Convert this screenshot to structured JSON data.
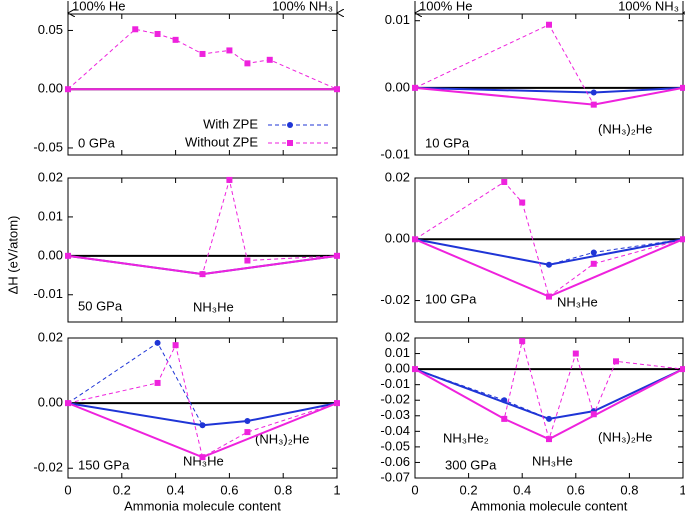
{
  "chart_data": [
    {
      "type": "line",
      "annotations": [
        "0 GPa"
      ],
      "top_labels": [
        "100% He",
        "100% NH₃"
      ],
      "legend": "lower right",
      "xlim": [
        0,
        1
      ],
      "xticks": [
        0,
        0.2,
        0.4,
        0.6,
        0.8,
        1
      ],
      "ylim": [
        -0.056,
        0.064
      ],
      "yticks": [
        {
          "value": 0.05,
          "label": "0.05"
        },
        {
          "value": 0,
          "label": "0.00"
        },
        {
          "value": -0.05,
          "label": "-0.05"
        }
      ],
      "series": [
        {
          "name": "With ZPE",
          "color": "#1f35d6",
          "x": [],
          "values": []
        },
        {
          "name": "Without ZPE",
          "color": "#ee22dd",
          "x": [
            0,
            0.25,
            0.333,
            0.4,
            0.5,
            0.6,
            0.667,
            0.75,
            1
          ],
          "values": [
            0,
            0.051,
            0.047,
            0.042,
            0.03,
            0.033,
            0.022,
            0.025,
            0
          ]
        }
      ]
    },
    {
      "type": "line",
      "annotations": [
        "10 GPa",
        "(NH₃)₂He"
      ],
      "top_labels": [
        "100% He",
        "100% NH₃"
      ],
      "xlim": [
        0,
        1
      ],
      "xticks": [
        0,
        0.2,
        0.4,
        0.6,
        0.8,
        1
      ],
      "ylim": [
        -0.01,
        0.011
      ],
      "yticks": [
        {
          "value": 0.01,
          "label": "0.01"
        },
        {
          "value": 0,
          "label": "0.00"
        },
        {
          "value": -0.01,
          "label": "-0.01"
        }
      ],
      "series": [
        {
          "color": "#1f35d6",
          "x": [
            0,
            0.667,
            1
          ],
          "values": [
            0,
            -0.0007,
            0
          ]
        },
        {
          "color": "#ee22dd",
          "x": [
            0,
            0.5,
            0.667,
            1
          ],
          "values": [
            0,
            0.0094,
            -0.0025,
            0
          ]
        }
      ]
    },
    {
      "type": "line",
      "annotations": [
        "50 GPa",
        "NH₃He"
      ],
      "y_label": "ΔH (eV/atom)",
      "xlim": [
        0,
        1
      ],
      "xticks": [
        0,
        0.2,
        0.4,
        0.6,
        0.8,
        1
      ],
      "ylim": [
        -0.017,
        0.02
      ],
      "yticks": [
        {
          "value": 0.02,
          "label": "0.02"
        },
        {
          "value": 0.01,
          "label": "0.01"
        },
        {
          "value": 0,
          "label": "0.00"
        },
        {
          "value": -0.01,
          "label": "-0.01"
        }
      ],
      "series": [
        {
          "color": "#1f35d6",
          "x": [
            0,
            0.5,
            1
          ],
          "values": [
            0,
            -0.0047,
            0
          ]
        },
        {
          "color": "#ee22dd",
          "x": [
            0,
            0.5,
            0.6,
            0.667,
            1
          ],
          "values": [
            0,
            -0.0047,
            0.0195,
            -0.0012,
            0
          ]
        }
      ]
    },
    {
      "type": "line",
      "annotations": [
        "100 GPa",
        "NH₃He"
      ],
      "xlim": [
        0,
        1
      ],
      "xticks": [
        0,
        0.2,
        0.4,
        0.6,
        0.8,
        1
      ],
      "ylim": [
        -0.027,
        0.02
      ],
      "yticks": [
        {
          "value": 0.02,
          "label": "0.02"
        },
        {
          "value": 0,
          "label": "0.00"
        },
        {
          "value": -0.02,
          "label": "-0.02"
        }
      ],
      "series": [
        {
          "color": "#1f35d6",
          "x": [
            0,
            0.5,
            0.667,
            1
          ],
          "values": [
            0,
            -0.0083,
            -0.0043,
            0
          ]
        },
        {
          "color": "#ee22dd",
          "x": [
            0,
            0.333,
            0.4,
            0.5,
            0.667,
            1
          ],
          "values": [
            0,
            0.0187,
            0.012,
            -0.0187,
            -0.008,
            0
          ]
        }
      ]
    },
    {
      "type": "line",
      "annotations": [
        "150 GPa",
        "NH₃He",
        "(NH₃)₂He"
      ],
      "x_label": "Ammonia molecule content",
      "xlim": [
        0,
        1
      ],
      "xticks": [
        0,
        0.2,
        0.4,
        0.6,
        0.8,
        1
      ],
      "ylim": [
        -0.023,
        0.02
      ],
      "yticks": [
        {
          "value": 0.02,
          "label": "0.02"
        },
        {
          "value": 0,
          "label": "0.00"
        },
        {
          "value": -0.02,
          "label": "-0.02"
        }
      ],
      "series": [
        {
          "color": "#1f35d6",
          "x": [
            0,
            0.333,
            0.5,
            0.667,
            1
          ],
          "values": [
            0,
            0.0185,
            -0.0068,
            -0.0055,
            0
          ]
        },
        {
          "color": "#ee22dd",
          "x": [
            0,
            0.333,
            0.4,
            0.5,
            0.667,
            1
          ],
          "values": [
            0,
            0.0062,
            0.0178,
            -0.0166,
            -0.0089,
            0
          ]
        }
      ]
    },
    {
      "type": "line",
      "annotations": [
        "300 GPa",
        "NH₃He₂",
        "NH₃He",
        "(NH₃)₂He"
      ],
      "x_label": "Ammonia molecule content",
      "xlim": [
        0,
        1
      ],
      "xticks": [
        0,
        0.2,
        0.4,
        0.6,
        0.8,
        1
      ],
      "ylim": [
        -0.07,
        0.02
      ],
      "yticks": [
        {
          "value": 0.02,
          "label": "0.02"
        },
        {
          "value": 0.01,
          "label": "0.01"
        },
        {
          "value": 0,
          "label": "0.00"
        },
        {
          "value": -0.01,
          "label": "-0.01"
        },
        {
          "value": -0.02,
          "label": "-0.02"
        },
        {
          "value": -0.03,
          "label": "-0.03"
        },
        {
          "value": -0.04,
          "label": "-0.04"
        },
        {
          "value": -0.05,
          "label": "-0.05"
        },
        {
          "value": -0.06,
          "label": "-0.06"
        },
        {
          "value": -0.07,
          "label": "-0.07"
        }
      ],
      "series": [
        {
          "color": "#1f35d6",
          "x": [
            0,
            0.333,
            0.5,
            0.667,
            1
          ],
          "values": [
            0,
            -0.02,
            -0.032,
            -0.027,
            0
          ]
        },
        {
          "color": "#ee22dd",
          "x": [
            0,
            0.333,
            0.4,
            0.5,
            0.6,
            0.667,
            0.75,
            1
          ],
          "values": [
            0,
            -0.032,
            0.018,
            -0.045,
            0.01,
            -0.029,
            0.005,
            0
          ]
        }
      ]
    }
  ]
}
